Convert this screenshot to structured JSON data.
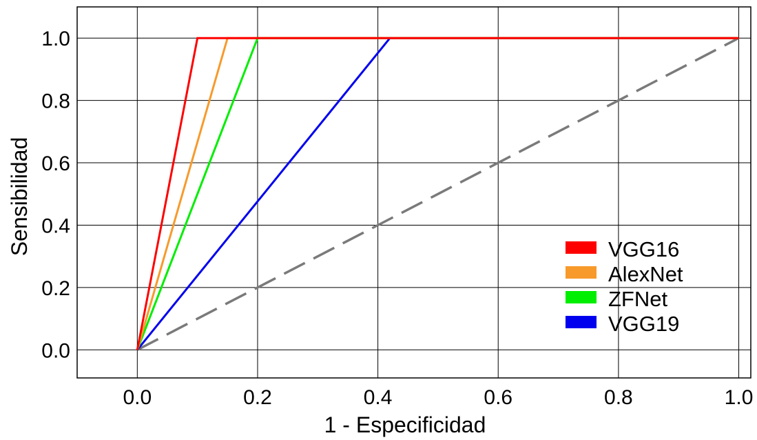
{
  "chart_data": {
    "type": "line",
    "xlabel": "1 -  Especificidad",
    "ylabel": "Sensibilidad",
    "xlim": [
      -0.1,
      1.02
    ],
    "ylim": [
      -0.09,
      1.1
    ],
    "x_ticks": [
      "0.0",
      "0.2",
      "0.4",
      "0.6",
      "0.8",
      "1.0"
    ],
    "y_ticks": [
      "0.0",
      "0.2",
      "0.4",
      "0.6",
      "0.8",
      "1.0"
    ],
    "grid": true,
    "legend_position": "bottom-right",
    "series": [
      {
        "name": "VGG16",
        "color": "#ff0000",
        "x": [
          0.0,
          0.1,
          1.0
        ],
        "y": [
          0.0,
          1.0,
          1.0
        ]
      },
      {
        "name": "AlexNet",
        "color": "#f79a2b",
        "x": [
          0.0,
          0.15,
          1.0
        ],
        "y": [
          0.0,
          1.0,
          1.0
        ]
      },
      {
        "name": "ZFNet",
        "color": "#00ee00",
        "x": [
          0.0,
          0.2,
          1.0
        ],
        "y": [
          0.0,
          1.0,
          1.0
        ]
      },
      {
        "name": "VGG19",
        "color": "#0000ee",
        "x": [
          0.0,
          0.42,
          1.0
        ],
        "y": [
          0.0,
          1.0,
          1.0
        ]
      }
    ],
    "reference_line": {
      "style": "dashed",
      "color": "#7a7a7a",
      "x": [
        0.0,
        1.0
      ],
      "y": [
        0.0,
        1.0
      ]
    }
  }
}
